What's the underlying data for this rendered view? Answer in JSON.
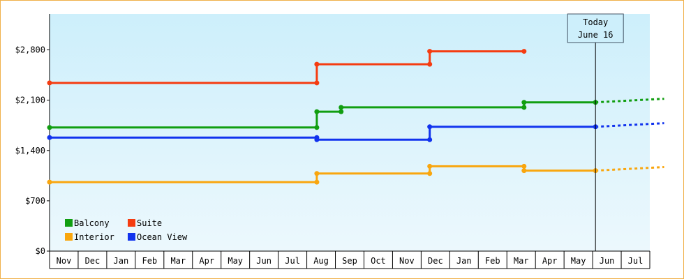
{
  "chart_data": {
    "type": "line",
    "step": true,
    "x_axis": {
      "labels": [
        "Nov",
        "Dec",
        "Jan",
        "Feb",
        "Mar",
        "Apr",
        "May",
        "Jun",
        "Jul",
        "Aug",
        "Sep",
        "Oct",
        "Nov",
        "Dec",
        "Jan",
        "Feb",
        "Mar",
        "Apr",
        "May",
        "Jun",
        "Jul"
      ],
      "range": [
        "Nov",
        "Jul"
      ]
    },
    "y_axis": {
      "ticks": [
        0,
        700,
        1400,
        2100,
        2800
      ],
      "tick_labels": [
        "$0",
        "$700",
        "$1,400",
        "$2,100",
        "$2,800"
      ],
      "ylim": [
        0,
        3300
      ]
    },
    "grid": false,
    "background": {
      "top": "#cdeffb",
      "bottom": "#ecf8fd"
    },
    "today": {
      "label_line1": "Today",
      "label_line2": "June 16",
      "x": 19.1
    },
    "legend": {
      "placement": "bottom-left",
      "entries": [
        {
          "label": "Balcony",
          "color": "#119e11"
        },
        {
          "label": "Suite",
          "color": "#f53c11"
        },
        {
          "label": "Interior",
          "color": "#f9a60e"
        },
        {
          "label": "Ocean View",
          "color": "#1133ee"
        }
      ]
    },
    "series": [
      {
        "name": "Suite",
        "color": "#f53c11",
        "points": [
          [
            0,
            2340
          ],
          [
            9.35,
            2340
          ],
          [
            9.35,
            2600
          ],
          [
            13.3,
            2600
          ],
          [
            13.3,
            2780
          ],
          [
            16.6,
            2780
          ]
        ],
        "projection": []
      },
      {
        "name": "Balcony",
        "color": "#119e11",
        "points": [
          [
            0,
            1720
          ],
          [
            9.35,
            1720
          ],
          [
            9.35,
            1940
          ],
          [
            10.2,
            1940
          ],
          [
            10.2,
            2000
          ],
          [
            16.6,
            2000
          ],
          [
            16.6,
            2070
          ],
          [
            19.1,
            2070
          ]
        ],
        "projection": [
          [
            19.1,
            2070
          ],
          [
            21.5,
            2120
          ]
        ]
      },
      {
        "name": "Ocean View",
        "color": "#1133ee",
        "points": [
          [
            0,
            1580
          ],
          [
            9.35,
            1580
          ],
          [
            9.35,
            1550
          ],
          [
            13.3,
            1550
          ],
          [
            13.3,
            1730
          ],
          [
            19.1,
            1730
          ]
        ],
        "projection": [
          [
            19.1,
            1730
          ],
          [
            21.5,
            1780
          ]
        ]
      },
      {
        "name": "Interior",
        "color": "#f9a60e",
        "points": [
          [
            0,
            960
          ],
          [
            9.35,
            960
          ],
          [
            9.35,
            1080
          ],
          [
            13.3,
            1080
          ],
          [
            13.3,
            1180
          ],
          [
            16.6,
            1180
          ],
          [
            16.6,
            1120
          ],
          [
            19.1,
            1120
          ]
        ],
        "projection": [
          [
            19.1,
            1120
          ],
          [
            21.5,
            1170
          ]
        ]
      }
    ]
  }
}
